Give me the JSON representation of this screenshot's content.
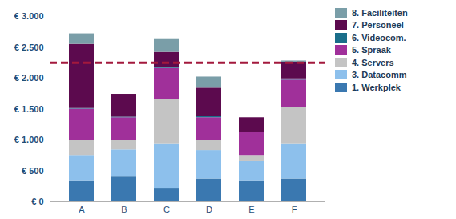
{
  "chart_data": {
    "type": "bar",
    "stacked": true,
    "grid": false,
    "legend": "right",
    "categories": [
      "A",
      "B",
      "C",
      "D",
      "E",
      "F"
    ],
    "ylim": [
      0,
      3000
    ],
    "yticks": [
      {
        "value": 0,
        "label": "€ 0"
      },
      {
        "value": 500,
        "label": "€ 500"
      },
      {
        "value": 1000,
        "label": "€ 1.000"
      },
      {
        "value": 1500,
        "label": "€ 1.500"
      },
      {
        "value": 2000,
        "label": "€ 2.000"
      },
      {
        "value": 2500,
        "label": "€ 2.500"
      },
      {
        "value": 3000,
        "label": "€ 3.000"
      }
    ],
    "series": [
      {
        "name": "1. Werkplek",
        "color": "#3a78b0",
        "values": [
          330,
          400,
          220,
          370,
          330,
          370
        ]
      },
      {
        "name": "3. Datacomm",
        "color": "#8dc0ec",
        "values": [
          420,
          440,
          720,
          460,
          320,
          570
        ]
      },
      {
        "name": "4. Servers",
        "color": "#c4c4c4",
        "values": [
          240,
          150,
          710,
          170,
          100,
          580
        ]
      },
      {
        "name": "5. Spraak",
        "color": "#a0309a",
        "values": [
          510,
          370,
          510,
          360,
          380,
          450
        ]
      },
      {
        "name": "6. Videocom.",
        "color": "#1a6e8a",
        "values": [
          10,
          10,
          10,
          20,
          0,
          20
        ]
      },
      {
        "name": "7. Personeel",
        "color": "#5c0a4e",
        "values": [
          1040,
          370,
          250,
          460,
          230,
          270
        ]
      },
      {
        "name": "8. Faciliteiten",
        "color": "#7a9ea8",
        "values": [
          170,
          0,
          220,
          180,
          0,
          20
        ]
      }
    ],
    "reference_line": {
      "value": 2250,
      "color": "#a3193d",
      "line_style": "dashed"
    }
  }
}
